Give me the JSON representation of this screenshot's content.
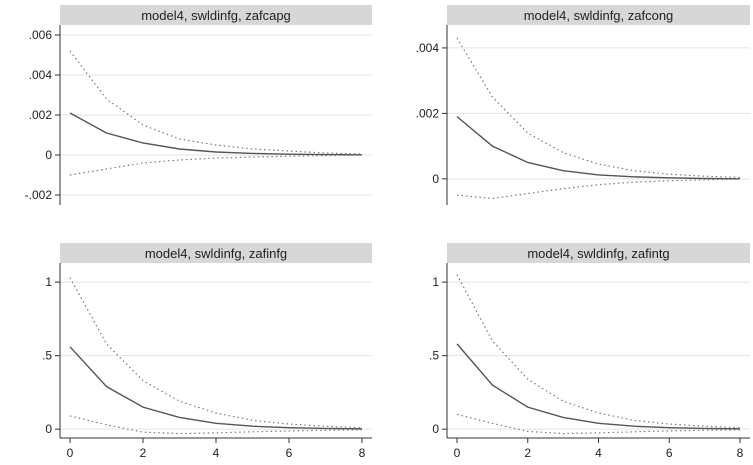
{
  "chart_data": [
    {
      "type": "line",
      "title": "model4, swldinfg, zafcapg",
      "x": [
        0,
        1,
        2,
        3,
        4,
        5,
        6,
        7,
        8
      ],
      "xlim": [
        0,
        8
      ],
      "ylim": [
        -0.0025,
        0.0065
      ],
      "yticks": [
        {
          "value": -0.002,
          "label": "-.002"
        },
        {
          "value": 0,
          "label": "0"
        },
        {
          "value": 0.002,
          "label": ".002"
        },
        {
          "value": 0.004,
          "label": ".004"
        },
        {
          "value": 0.006,
          "label": ".006"
        }
      ],
      "xticks": [],
      "series": [
        {
          "style": "solid",
          "values": [
            0.0021,
            0.0011,
            0.0006,
            0.0003,
            0.00015,
            8e-05,
            4e-05,
            2e-05,
            1e-05
          ]
        },
        {
          "style": "dotted",
          "values": [
            0.0052,
            0.0028,
            0.0015,
            0.0008,
            0.0005,
            0.0003,
            0.0002,
            0.0001,
            5e-05
          ]
        },
        {
          "style": "dotted",
          "values": [
            -0.001,
            -0.0007,
            -0.0004,
            -0.00025,
            -0.00015,
            -0.0001,
            -6e-05,
            -3e-05,
            -1e-05
          ]
        }
      ],
      "grid": true,
      "colors": {
        "line": "#555555",
        "band": "#777777",
        "grid": "#e3e3e3",
        "strip": "#d7d7d7"
      }
    },
    {
      "type": "line",
      "title": "model4, swldinfg, zafcong",
      "x": [
        0,
        1,
        2,
        3,
        4,
        5,
        6,
        7,
        8
      ],
      "xlim": [
        0,
        8
      ],
      "ylim": [
        -0.0008,
        0.0047
      ],
      "yticks": [
        {
          "value": 0,
          "label": "0"
        },
        {
          "value": 0.002,
          "label": ".002"
        },
        {
          "value": 0.004,
          "label": ".004"
        }
      ],
      "xticks": [],
      "series": [
        {
          "style": "solid",
          "values": [
            0.0019,
            0.001,
            0.0005,
            0.00025,
            0.00012,
            6e-05,
            3e-05,
            1e-05,
            0.0
          ]
        },
        {
          "style": "dotted",
          "values": [
            0.0043,
            0.0025,
            0.0014,
            0.0008,
            0.00045,
            0.00025,
            0.00014,
            8e-05,
            4e-05
          ]
        },
        {
          "style": "dotted",
          "values": [
            -0.0005,
            -0.0006,
            -0.00045,
            -0.0003,
            -0.00018,
            -0.0001,
            -6e-05,
            -3e-05,
            -1e-05
          ]
        }
      ],
      "grid": true,
      "colors": {
        "line": "#555555",
        "band": "#777777",
        "grid": "#e3e3e3",
        "strip": "#d7d7d7"
      }
    },
    {
      "type": "line",
      "title": "model4, swldinfg, zafinfg",
      "x": [
        0,
        1,
        2,
        3,
        4,
        5,
        6,
        7,
        8
      ],
      "xlim": [
        0,
        8
      ],
      "ylim": [
        -0.06,
        1.13
      ],
      "yticks": [
        {
          "value": 0,
          "label": "0"
        },
        {
          "value": 0.5,
          "label": ".5"
        },
        {
          "value": 1,
          "label": "1"
        }
      ],
      "xticks": [
        {
          "value": 0,
          "label": "0"
        },
        {
          "value": 2,
          "label": "2"
        },
        {
          "value": 4,
          "label": "4"
        },
        {
          "value": 6,
          "label": "6"
        },
        {
          "value": 8,
          "label": "8"
        }
      ],
      "series": [
        {
          "style": "solid",
          "values": [
            0.56,
            0.29,
            0.15,
            0.08,
            0.04,
            0.02,
            0.01,
            0.005,
            0.002
          ]
        },
        {
          "style": "dotted",
          "values": [
            1.03,
            0.58,
            0.33,
            0.19,
            0.11,
            0.06,
            0.035,
            0.02,
            0.01
          ]
        },
        {
          "style": "dotted",
          "values": [
            0.09,
            0.03,
            -0.02,
            -0.03,
            -0.025,
            -0.018,
            -0.012,
            -0.007,
            -0.004
          ]
        }
      ],
      "grid": true,
      "colors": {
        "line": "#555555",
        "band": "#777777",
        "grid": "#e3e3e3",
        "strip": "#d7d7d7"
      }
    },
    {
      "type": "line",
      "title": "model4, swldinfg, zafintg",
      "x": [
        0,
        1,
        2,
        3,
        4,
        5,
        6,
        7,
        8
      ],
      "xlim": [
        0,
        8
      ],
      "ylim": [
        -0.06,
        1.13
      ],
      "yticks": [
        {
          "value": 0,
          "label": "0"
        },
        {
          "value": 0.5,
          "label": ".5"
        },
        {
          "value": 1,
          "label": "1"
        }
      ],
      "xticks": [
        {
          "value": 0,
          "label": "0"
        },
        {
          "value": 2,
          "label": "2"
        },
        {
          "value": 4,
          "label": "4"
        },
        {
          "value": 6,
          "label": "6"
        },
        {
          "value": 8,
          "label": "8"
        }
      ],
      "series": [
        {
          "style": "solid",
          "values": [
            0.58,
            0.3,
            0.15,
            0.08,
            0.04,
            0.02,
            0.01,
            0.005,
            0.002
          ]
        },
        {
          "style": "dotted",
          "values": [
            1.05,
            0.6,
            0.34,
            0.19,
            0.11,
            0.06,
            0.035,
            0.02,
            0.01
          ]
        },
        {
          "style": "dotted",
          "values": [
            0.1,
            0.04,
            -0.015,
            -0.03,
            -0.025,
            -0.018,
            -0.012,
            -0.007,
            -0.004
          ]
        }
      ],
      "grid": true,
      "colors": {
        "line": "#555555",
        "band": "#777777",
        "grid": "#e3e3e3",
        "strip": "#d7d7d7"
      }
    }
  ]
}
